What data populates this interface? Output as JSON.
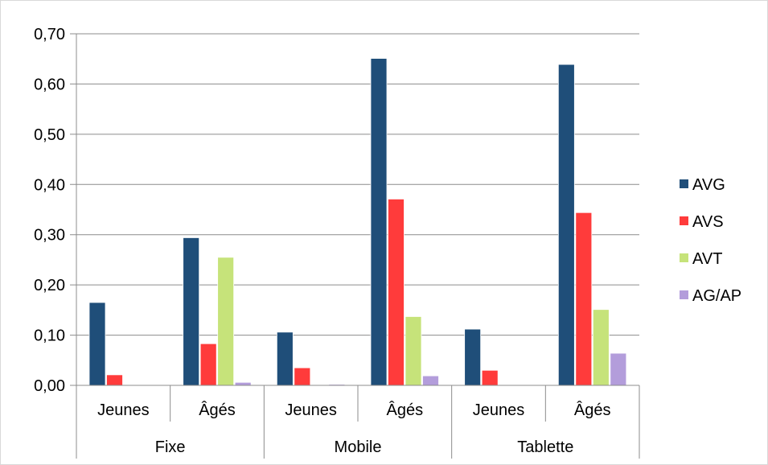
{
  "chart_data": {
    "type": "bar",
    "groups": [
      {
        "label": "Fixe",
        "subcategories": [
          "Jeunes",
          "Âgés"
        ]
      },
      {
        "label": "Mobile",
        "subcategories": [
          "Jeunes",
          "Âgés"
        ]
      },
      {
        "label": "Tablette",
        "subcategories": [
          "Jeunes",
          "Âgés"
        ]
      }
    ],
    "categories": [
      "Jeunes",
      "Âgés",
      "Jeunes",
      "Âgés",
      "Jeunes",
      "Âgés"
    ],
    "series": [
      {
        "name": "AVG",
        "color": "#1f4e79",
        "values": [
          0.165,
          0.294,
          0.106,
          0.651,
          0.112,
          0.639
        ]
      },
      {
        "name": "AVS",
        "color": "#ff3b3b",
        "values": [
          0.021,
          0.083,
          0.035,
          0.371,
          0.03,
          0.344
        ]
      },
      {
        "name": "AVT",
        "color": "#c6e37a",
        "values": [
          0.0,
          0.255,
          0.0,
          0.137,
          0.0,
          0.151
        ]
      },
      {
        "name": "AG/AP",
        "color": "#b39ddb",
        "values": [
          0.0,
          0.006,
          0.002,
          0.019,
          0.0,
          0.064
        ]
      }
    ],
    "ylim": [
      0,
      0.7
    ],
    "yticks": [
      "0,00",
      "0,10",
      "0,20",
      "0,30",
      "0,40",
      "0,50",
      "0,60",
      "0,70"
    ],
    "grid": true,
    "legend_position": "right"
  }
}
